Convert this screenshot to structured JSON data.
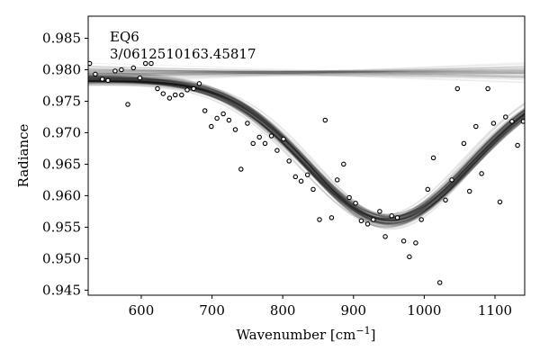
{
  "chart_data": {
    "type": "scatter",
    "title": "",
    "annotation": [
      "EQ6",
      "3/0612510163.45817"
    ],
    "xlabel": "Wavenumber [cm",
    "xlabel_sup": "−1",
    "xlabel_suffix": "]",
    "ylabel": "Radiance",
    "xlim": [
      525,
      1142
    ],
    "ylim": [
      0.9442,
      0.9885
    ],
    "xticks": [
      600,
      700,
      800,
      900,
      1000,
      1100
    ],
    "yticks": [
      0.945,
      0.95,
      0.955,
      0.96,
      0.965,
      0.97,
      0.975,
      0.98,
      0.985
    ],
    "grid": false,
    "legend": "none",
    "colors": {
      "points_stroke": "#000000",
      "points_fill": "#ffffff",
      "bands": "#000000"
    },
    "data_points": [
      {
        "x": 527,
        "y": 0.981
      },
      {
        "x": 535,
        "y": 0.9793
      },
      {
        "x": 545,
        "y": 0.9785
      },
      {
        "x": 553,
        "y": 0.9783
      },
      {
        "x": 563,
        "y": 0.9798
      },
      {
        "x": 572,
        "y": 0.98
      },
      {
        "x": 581,
        "y": 0.9745
      },
      {
        "x": 589,
        "y": 0.9803
      },
      {
        "x": 598,
        "y": 0.9787
      },
      {
        "x": 606,
        "y": 0.981
      },
      {
        "x": 614,
        "y": 0.981
      },
      {
        "x": 623,
        "y": 0.977
      },
      {
        "x": 631,
        "y": 0.9762
      },
      {
        "x": 640,
        "y": 0.9755
      },
      {
        "x": 648,
        "y": 0.976
      },
      {
        "x": 657,
        "y": 0.976
      },
      {
        "x": 665,
        "y": 0.9768
      },
      {
        "x": 674,
        "y": 0.977
      },
      {
        "x": 682,
        "y": 0.9778
      },
      {
        "x": 690,
        "y": 0.9735
      },
      {
        "x": 699,
        "y": 0.971
      },
      {
        "x": 707,
        "y": 0.9723
      },
      {
        "x": 716,
        "y": 0.973
      },
      {
        "x": 724,
        "y": 0.972
      },
      {
        "x": 733,
        "y": 0.9705
      },
      {
        "x": 741,
        "y": 0.9642
      },
      {
        "x": 750,
        "y": 0.9715
      },
      {
        "x": 758,
        "y": 0.9683
      },
      {
        "x": 767,
        "y": 0.9693
      },
      {
        "x": 775,
        "y": 0.9683
      },
      {
        "x": 784,
        "y": 0.9695
      },
      {
        "x": 792,
        "y": 0.9672
      },
      {
        "x": 801,
        "y": 0.969
      },
      {
        "x": 809,
        "y": 0.9655
      },
      {
        "x": 818,
        "y": 0.963
      },
      {
        "x": 826,
        "y": 0.9623
      },
      {
        "x": 835,
        "y": 0.9633
      },
      {
        "x": 843,
        "y": 0.961
      },
      {
        "x": 852,
        "y": 0.9562
      },
      {
        "x": 860,
        "y": 0.972
      },
      {
        "x": 869,
        "y": 0.9565
      },
      {
        "x": 877,
        "y": 0.9625
      },
      {
        "x": 886,
        "y": 0.965
      },
      {
        "x": 894,
        "y": 0.9597
      },
      {
        "x": 903,
        "y": 0.9588
      },
      {
        "x": 911,
        "y": 0.956
      },
      {
        "x": 920,
        "y": 0.9555
      },
      {
        "x": 928,
        "y": 0.9562
      },
      {
        "x": 937,
        "y": 0.9575
      },
      {
        "x": 945,
        "y": 0.9535
      },
      {
        "x": 954,
        "y": 0.9568
      },
      {
        "x": 962,
        "y": 0.9565
      },
      {
        "x": 971,
        "y": 0.9528
      },
      {
        "x": 979,
        "y": 0.9503
      },
      {
        "x": 988,
        "y": 0.9525
      },
      {
        "x": 996,
        "y": 0.9562
      },
      {
        "x": 1005,
        "y": 0.961
      },
      {
        "x": 1013,
        "y": 0.966
      },
      {
        "x": 1022,
        "y": 0.9462
      },
      {
        "x": 1030,
        "y": 0.9593
      },
      {
        "x": 1039,
        "y": 0.9625
      },
      {
        "x": 1047,
        "y": 0.977
      },
      {
        "x": 1056,
        "y": 0.9683
      },
      {
        "x": 1064,
        "y": 0.9607
      },
      {
        "x": 1073,
        "y": 0.971
      },
      {
        "x": 1081,
        "y": 0.9635
      },
      {
        "x": 1090,
        "y": 0.977
      },
      {
        "x": 1098,
        "y": 0.9715
      },
      {
        "x": 1107,
        "y": 0.959
      },
      {
        "x": 1115,
        "y": 0.9725
      },
      {
        "x": 1124,
        "y": 0.9718
      },
      {
        "x": 1132,
        "y": 0.968
      },
      {
        "x": 1140,
        "y": 0.9718
      }
    ],
    "model_bands": {
      "absorption": {
        "baseline_start": 0.9785,
        "baseline_end": 0.9785,
        "center": 950,
        "sigma": 115,
        "depth": 0.0225,
        "n_samples": 70
      },
      "flat": {
        "baseline": 0.9795,
        "n_samples": 60
      }
    }
  }
}
